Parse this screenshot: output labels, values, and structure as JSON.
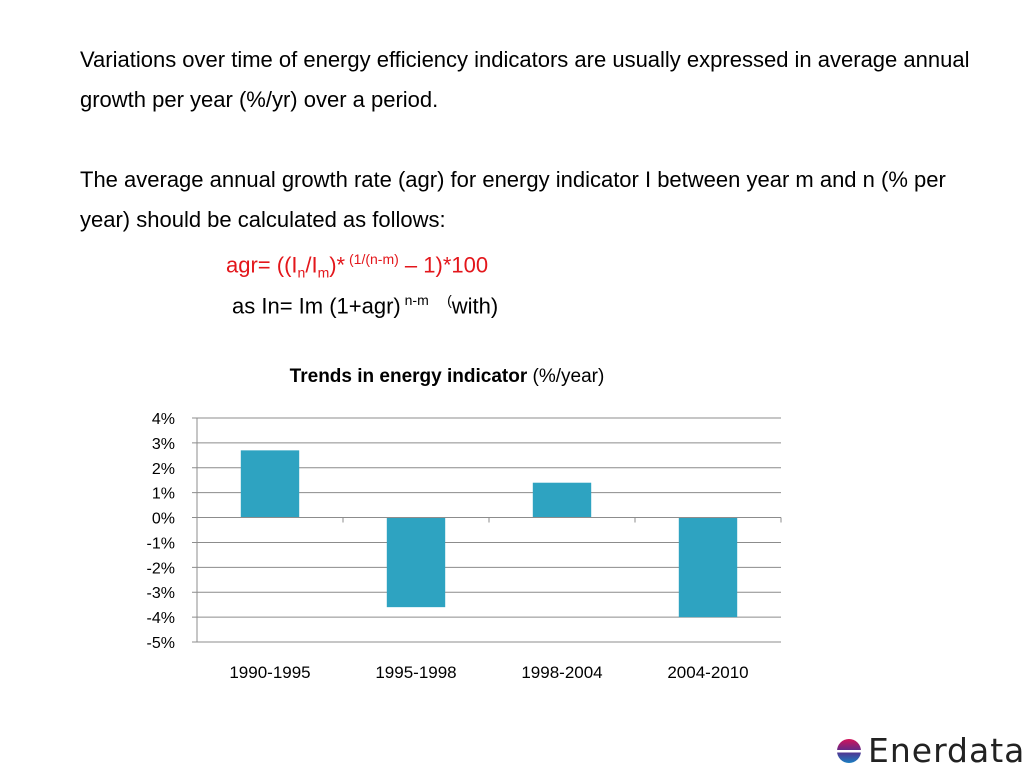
{
  "text": {
    "para1": "Variations over time of energy efficiency indicators are usually expressed in average annual growth per year (%/yr) over a period.",
    "para2": "The average annual growth rate (agr)  for energy indicator I between year m and n (% per year) should be calculated as follows:",
    "formula1": {
      "prefix": "agr= ((I",
      "sub_n": "n",
      "slash": "/I",
      "sub_m": "m",
      "close": ")*",
      "exponent": " (1/(n-m)",
      "suffix": " – 1)*100"
    },
    "formula2": {
      "prefix": "as In= Im (1+agr)",
      "exponent": " n-m",
      "paren": "(",
      "suffix": "with)"
    }
  },
  "chart_data": {
    "type": "bar",
    "title": "Trends in energy indicator",
    "title_suffix": "(%/year)",
    "categories": [
      "1990-1995",
      "1995-1998",
      "1998-2004",
      "2004-2010"
    ],
    "values": [
      2.7,
      -3.6,
      1.4,
      -4.0
    ],
    "ylim": [
      -5,
      4
    ],
    "yticks": [
      "-5%",
      "-4%",
      "-3%",
      "-2%",
      "-1%",
      "0%",
      "1%",
      "2%",
      "3%",
      "4%"
    ],
    "grid": true,
    "bar_color": "#2ea3c1",
    "grid_color": "#8c8c8c"
  },
  "logo": {
    "text": "Enerdata",
    "colors": [
      "#d4145a",
      "#1a7fc1"
    ]
  }
}
